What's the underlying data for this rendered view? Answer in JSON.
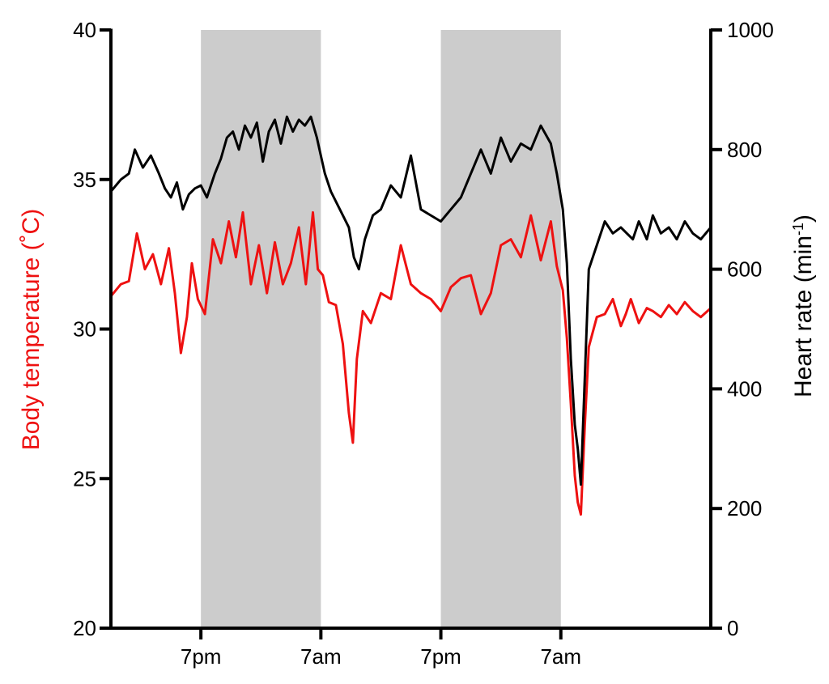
{
  "chart_data": {
    "type": "line",
    "xlabel": "",
    "x_range_hours": [
      -9,
      51
    ],
    "x_ticks": [
      {
        "hour": 0,
        "label": "7pm"
      },
      {
        "hour": 12,
        "label": "7am"
      },
      {
        "hour": 24,
        "label": "7pm"
      },
      {
        "hour": 36,
        "label": "7am"
      }
    ],
    "dark_periods": [
      [
        0,
        12
      ],
      [
        24,
        36
      ]
    ],
    "shade_color": "#cccccc",
    "y_left": {
      "label": "Body temperature (˚C)",
      "range": [
        20,
        40
      ],
      "ticks": [
        "20",
        "25",
        "30",
        "35",
        "40"
      ],
      "color": "#ee1111"
    },
    "y_right": {
      "label_main": "Heart rate (min",
      "label_sup": "-1",
      "label_close": ")",
      "range": [
        0,
        1000
      ],
      "ticks": [
        "0",
        "200",
        "400",
        "600",
        "800",
        "1000"
      ],
      "color": "#000000"
    },
    "series": [
      {
        "axis": "left",
        "color": "#ee1111",
        "x": [
          -9,
          -8,
          -7.2,
          -6.4,
          -5.6,
          -4.8,
          -4,
          -3.2,
          -2.6,
          -2,
          -1.4,
          -0.9,
          -0.3,
          0.4,
          1.2,
          2,
          2.8,
          3.5,
          4.2,
          5,
          5.8,
          6.6,
          7.4,
          8.2,
          9,
          9.8,
          10.5,
          11.2,
          11.7,
          12.2,
          12.8,
          13.5,
          14.2,
          14.8,
          15.2,
          15.6,
          16.2,
          17,
          18,
          19,
          20,
          21,
          22,
          23,
          24,
          25,
          26,
          27,
          28,
          29,
          30,
          31,
          32,
          33,
          34,
          35,
          35.6,
          36.2,
          36.6,
          37,
          37.4,
          37.7,
          38,
          38.4,
          38.8,
          39.6,
          40.4,
          41.2,
          42,
          42.5,
          43,
          43.8,
          44.6,
          45.2,
          46,
          46.8,
          47.6,
          48.4,
          49.2,
          50,
          51
        ],
        "y": [
          31.1,
          31.5,
          31.6,
          33.2,
          32.0,
          32.5,
          31.5,
          32.7,
          31.2,
          29.2,
          30.4,
          32.2,
          31.0,
          30.5,
          33.0,
          32.2,
          33.6,
          32.4,
          33.9,
          31.5,
          32.8,
          31.2,
          32.9,
          31.5,
          32.2,
          33.4,
          31.5,
          33.9,
          32.0,
          31.8,
          30.9,
          30.8,
          29.5,
          27.2,
          26.2,
          29.0,
          30.6,
          30.2,
          31.2,
          31.0,
          32.8,
          31.5,
          31.2,
          31.0,
          30.6,
          31.4,
          31.7,
          31.8,
          30.5,
          31.2,
          32.8,
          33.0,
          32.4,
          33.8,
          32.3,
          33.6,
          32.1,
          31.3,
          29.7,
          27.5,
          25.1,
          24.2,
          23.8,
          26.8,
          29.4,
          30.4,
          30.5,
          31.0,
          30.1,
          30.5,
          31.0,
          30.2,
          30.7,
          30.6,
          30.4,
          30.8,
          30.5,
          30.9,
          30.6,
          30.4,
          30.7
        ]
      },
      {
        "axis": "right",
        "color": "#000000",
        "x": [
          -9,
          -8,
          -7.2,
          -6.6,
          -5.8,
          -5,
          -4.2,
          -3.6,
          -3,
          -2.4,
          -1.8,
          -1.2,
          -0.6,
          0,
          0.6,
          1.4,
          2,
          2.6,
          3.2,
          3.8,
          4.4,
          5,
          5.6,
          6.2,
          6.8,
          7.4,
          8,
          8.6,
          9.2,
          9.8,
          10.4,
          11,
          11.6,
          12,
          12.4,
          13,
          13.6,
          14.2,
          14.8,
          15.3,
          15.8,
          16.4,
          17.2,
          18,
          19,
          20,
          21,
          22,
          23,
          24,
          25,
          26,
          27,
          28,
          29,
          30,
          31,
          32,
          33,
          34,
          35,
          35.6,
          36.2,
          36.6,
          37,
          37.4,
          37.7,
          38,
          38.4,
          38.8,
          39.6,
          40.4,
          41.2,
          42,
          42.6,
          43.2,
          43.8,
          44.6,
          45.2,
          46,
          46.8,
          47.6,
          48.4,
          49.2,
          50,
          51
        ],
        "y": [
          730,
          750,
          760,
          800,
          770,
          790,
          760,
          735,
          720,
          745,
          700,
          725,
          735,
          740,
          720,
          760,
          785,
          820,
          830,
          800,
          840,
          820,
          845,
          780,
          830,
          850,
          810,
          855,
          830,
          850,
          840,
          855,
          820,
          790,
          760,
          730,
          710,
          690,
          670,
          620,
          600,
          650,
          690,
          700,
          740,
          720,
          790,
          700,
          690,
          680,
          700,
          720,
          760,
          800,
          760,
          820,
          780,
          810,
          800,
          840,
          810,
          760,
          700,
          610,
          450,
          340,
          300,
          240,
          420,
          600,
          640,
          680,
          660,
          670,
          660,
          650,
          680,
          650,
          690,
          660,
          670,
          650,
          680,
          660,
          650,
          670
        ]
      }
    ]
  }
}
